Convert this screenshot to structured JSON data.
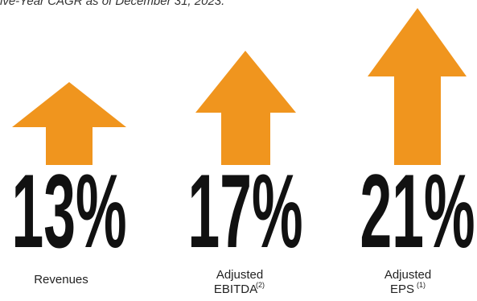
{
  "header": {
    "text": "ive-Year CAGR as of December 31, 2023."
  },
  "items": [
    {
      "value": "13%",
      "label": [
        "Revenues"
      ],
      "note": null
    },
    {
      "value": "17%",
      "label": [
        "Adjusted",
        "EBITDA"
      ],
      "note": "(2)"
    },
    {
      "value": "21%",
      "label": [
        "Adjusted",
        "EPS"
      ],
      "note": "(1)"
    }
  ]
}
